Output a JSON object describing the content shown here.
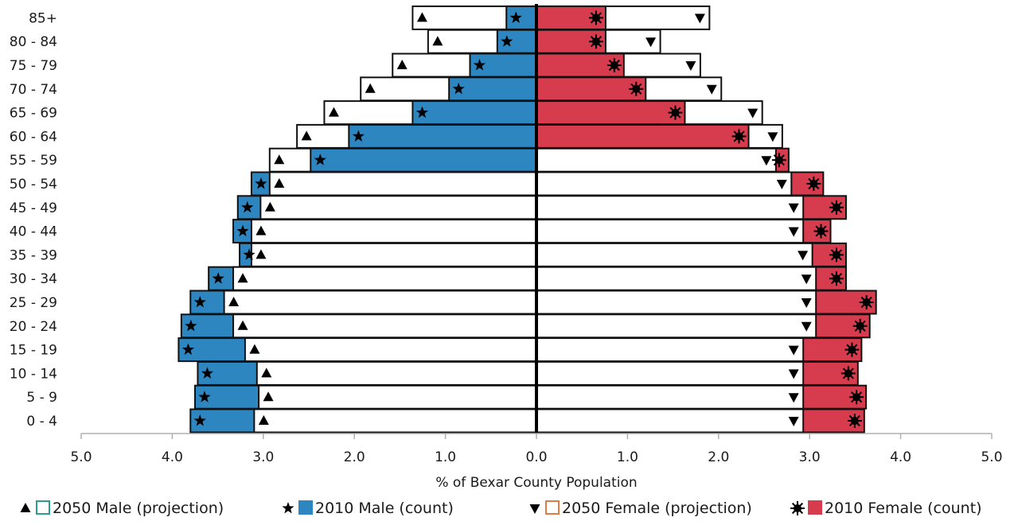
{
  "chart_data": {
    "type": "bar",
    "orientation": "horizontal",
    "layout": "population-pyramid",
    "xlabel": "% of Bexar County Population",
    "xlim": [
      -5.0,
      5.0
    ],
    "xticks": [
      -5,
      -4,
      -3,
      -2,
      -1,
      0,
      1,
      2,
      3,
      4,
      5
    ],
    "xtick_labels": [
      "5.0",
      "4.0",
      "3.0",
      "2.0",
      "1.0",
      "0.0",
      "1.0",
      "2.0",
      "3.0",
      "4.0",
      "5.0"
    ],
    "categories": [
      "0 - 4",
      "5 - 9",
      "10 - 14",
      "15 - 19",
      "20 - 24",
      "25 - 29",
      "30 - 34",
      "35 - 39",
      "40 - 44",
      "45 - 49",
      "50 - 54",
      "55 - 59",
      "60 - 64",
      "65 - 69",
      "70 - 74",
      "75 - 79",
      "80 - 84",
      "85+"
    ],
    "series": [
      {
        "name": "2050 Male (projection)",
        "side": "left",
        "marker": "triangle-up",
        "fill": "#ffffff",
        "values": [
          3.1,
          3.05,
          3.07,
          3.2,
          3.33,
          3.43,
          3.33,
          3.13,
          3.13,
          3.03,
          2.93,
          2.93,
          2.63,
          2.33,
          1.93,
          1.58,
          1.19,
          1.36
        ]
      },
      {
        "name": "2010 Male (count)",
        "side": "left",
        "marker": "star",
        "fill": "#2e86c1",
        "values": [
          3.8,
          3.75,
          3.72,
          3.93,
          3.9,
          3.8,
          3.6,
          3.26,
          3.33,
          3.28,
          3.13,
          2.48,
          2.06,
          1.36,
          0.96,
          0.73,
          0.43,
          0.33
        ]
      },
      {
        "name": "2050 Female (projection)",
        "side": "right",
        "marker": "triangle-down",
        "fill": "#ffffff",
        "values": [
          2.93,
          2.93,
          2.93,
          2.93,
          3.07,
          3.07,
          3.07,
          3.03,
          2.93,
          2.93,
          2.8,
          2.63,
          2.7,
          2.48,
          2.03,
          1.8,
          1.36,
          1.9
        ]
      },
      {
        "name": "2010 Female (count)",
        "side": "right",
        "marker": "sunburst",
        "fill": "#d63c4e",
        "values": [
          3.6,
          3.62,
          3.53,
          3.57,
          3.66,
          3.73,
          3.4,
          3.4,
          3.23,
          3.4,
          3.15,
          2.77,
          2.33,
          1.63,
          1.2,
          0.96,
          0.76,
          0.76
        ]
      }
    ],
    "grid": false,
    "legend_position": "bottom"
  }
}
